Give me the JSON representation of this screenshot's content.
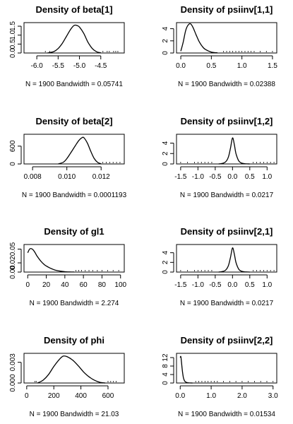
{
  "chart_data": [
    {
      "type": "line",
      "title": "Density of beta[1]",
      "subtitle": "N = 1900   Bandwidth = 0.05741",
      "xticks": [
        -6.0,
        -5.5,
        -5.0,
        -4.5
      ],
      "xtick_labels": [
        "-6.0",
        "-5.5",
        "-5.0",
        "-4.5"
      ],
      "xlim": [
        -6.3,
        -3.95
      ],
      "yticks": [
        0.0,
        0.5,
        1.0,
        1.5
      ],
      "ytick_labels": [
        "0.0",
        "0.5",
        "1.0",
        "1.5"
      ],
      "ylim": [
        0,
        1.7
      ],
      "x": [
        -5.75,
        -5.6,
        -5.5,
        -5.4,
        -5.3,
        -5.2,
        -5.12,
        -5.05,
        -5.0,
        -4.9,
        -4.8,
        -4.7,
        -4.6,
        -4.5
      ],
      "y": [
        0.0,
        0.08,
        0.25,
        0.55,
        0.95,
        1.35,
        1.55,
        1.53,
        1.45,
        1.1,
        0.6,
        0.25,
        0.07,
        0.01
      ],
      "rug": [
        -5.8,
        -5.7,
        -4.45,
        -4.35,
        -4.3,
        -4.2,
        -4.15,
        -4.1
      ]
    },
    {
      "type": "line",
      "title": "Density of psiinv[1,1]",
      "subtitle": "N = 1900   Bandwidth = 0.02388",
      "xticks": [
        0.0,
        0.5,
        1.0,
        1.5
      ],
      "xtick_labels": [
        "0.0",
        "0.5",
        "1.0",
        "1.5"
      ],
      "xlim": [
        -0.07,
        1.57
      ],
      "yticks": [
        0,
        2,
        4
      ],
      "ytick_labels": [
        "0",
        "2",
        "4"
      ],
      "ylim": [
        0,
        5.0
      ],
      "x": [
        0.0,
        0.04,
        0.08,
        0.12,
        0.16,
        0.2,
        0.25,
        0.3,
        0.35,
        0.4,
        0.5,
        0.6
      ],
      "y": [
        0.3,
        1.8,
        3.7,
        4.6,
        4.8,
        4.2,
        3.0,
        1.9,
        1.1,
        0.6,
        0.15,
        0.03
      ],
      "rug": [
        0.7,
        0.75,
        0.8,
        0.85,
        0.9,
        0.95,
        1.0,
        1.05,
        1.1,
        1.15,
        1.2,
        1.3,
        1.4,
        1.5
      ]
    },
    {
      "type": "line",
      "title": "Density of beta[2]",
      "subtitle": "N = 1900   Bandwidth = 0.0001193",
      "xticks": [
        0.008,
        0.01,
        0.012
      ],
      "xtick_labels": [
        "0.008",
        "0.010",
        "0.012"
      ],
      "xlim": [
        0.0075,
        0.01335
      ],
      "yticks": [
        0,
        600
      ],
      "ytick_labels": [
        "0",
        "600"
      ],
      "ylim": [
        0,
        1000
      ],
      "x": [
        0.0095,
        0.0098,
        0.01,
        0.0102,
        0.0105,
        0.0107,
        0.0109,
        0.011,
        0.0112,
        0.0114,
        0.0116,
        0.0118,
        0.012
      ],
      "y": [
        0,
        60,
        180,
        350,
        620,
        790,
        890,
        880,
        700,
        420,
        180,
        50,
        5
      ],
      "rug": [
        0.0121,
        0.0123,
        0.0125,
        0.0127,
        0.0129,
        0.0131
      ]
    },
    {
      "type": "line",
      "title": "Density of psiinv[1,2]",
      "subtitle": "N = 1900   Bandwidth = 0.0217",
      "xticks": [
        -1.5,
        -1.0,
        -0.5,
        0.0,
        0.5,
        1.0
      ],
      "xtick_labels": [
        "-1.5",
        "-1.0",
        "-0.5",
        "0.0",
        "0.5",
        "1.0"
      ],
      "xlim": [
        -1.62,
        1.28
      ],
      "yticks": [
        0,
        2,
        4
      ],
      "ytick_labels": [
        "0",
        "2",
        "4"
      ],
      "ylim": [
        0,
        5.7
      ],
      "x": [
        -0.4,
        -0.3,
        -0.2,
        -0.12,
        -0.06,
        0.0,
        0.05,
        0.1,
        0.18,
        0.25,
        0.35,
        0.5
      ],
      "y": [
        0.0,
        0.1,
        0.4,
        1.3,
        3.0,
        5.0,
        3.8,
        2.0,
        0.6,
        0.2,
        0.05,
        0.0
      ],
      "rug": [
        -1.5,
        -1.3,
        -1.1,
        -1.0,
        -0.9,
        -0.8,
        -0.7,
        -0.6,
        0.6,
        0.7,
        0.8,
        0.9,
        1.0,
        1.1,
        1.2
      ]
    },
    {
      "type": "line",
      "title": "Density of gl1",
      "subtitle": "N = 1900   Bandwidth = 2.274",
      "xticks": [
        0,
        20,
        40,
        60,
        80,
        100
      ],
      "xtick_labels": [
        "0",
        "20",
        "40",
        "60",
        "80",
        "100"
      ],
      "xlim": [
        -4,
        104
      ],
      "yticks": [
        0.0,
        0.02,
        0.05
      ],
      "ytick_labels": [
        "0.00",
        "0.02",
        "0.05"
      ],
      "ylim": [
        0,
        0.06
      ],
      "x": [
        0,
        2,
        4,
        6,
        8,
        10,
        14,
        18,
        22,
        26,
        30,
        35,
        40,
        45,
        50
      ],
      "y": [
        0.042,
        0.05,
        0.051,
        0.048,
        0.042,
        0.035,
        0.024,
        0.016,
        0.011,
        0.007,
        0.004,
        0.002,
        0.0008,
        0.0003,
        0.0001
      ],
      "rug": [
        52,
        55,
        58,
        62,
        66,
        70,
        75,
        80,
        86,
        92,
        98
      ]
    },
    {
      "type": "line",
      "title": "Density of psiinv[2,1]",
      "subtitle": "N = 1900   Bandwidth = 0.0217",
      "xticks": [
        -1.5,
        -1.0,
        -0.5,
        0.0,
        0.5,
        1.0
      ],
      "xtick_labels": [
        "-1.5",
        "-1.0",
        "-0.5",
        "0.0",
        "0.5",
        "1.0"
      ],
      "xlim": [
        -1.62,
        1.28
      ],
      "yticks": [
        0,
        2,
        4
      ],
      "ytick_labels": [
        "0",
        "2",
        "4"
      ],
      "ylim": [
        0,
        5.7
      ],
      "x": [
        -0.4,
        -0.3,
        -0.2,
        -0.12,
        -0.06,
        0.0,
        0.05,
        0.1,
        0.18,
        0.25,
        0.35,
        0.5
      ],
      "y": [
        0.0,
        0.1,
        0.4,
        1.3,
        3.0,
        5.0,
        3.8,
        2.0,
        0.6,
        0.2,
        0.05,
        0.0
      ],
      "rug": [
        -1.5,
        -1.3,
        -1.1,
        -1.0,
        -0.9,
        -0.8,
        -0.7,
        -0.6,
        0.6,
        0.7,
        0.8,
        0.9,
        1.0,
        1.1,
        1.2
      ]
    },
    {
      "type": "line",
      "title": "Density of phi",
      "subtitle": "N = 1900   Bandwidth = 21.03",
      "xticks": [
        0,
        200,
        400,
        600
      ],
      "xtick_labels": [
        "0",
        "200",
        "400",
        "600"
      ],
      "xlim": [
        -20,
        720
      ],
      "yticks": [
        0.0,
        0.003
      ],
      "ytick_labels": [
        "0.000",
        "0.003"
      ],
      "ylim": [
        0,
        0.0043
      ],
      "x": [
        80,
        120,
        160,
        200,
        240,
        270,
        300,
        340,
        380,
        420,
        460,
        500,
        540,
        580
      ],
      "y": [
        0.0,
        0.0004,
        0.0012,
        0.0024,
        0.0034,
        0.0039,
        0.0038,
        0.0033,
        0.0025,
        0.0016,
        0.0009,
        0.0004,
        0.0001,
        0.0
      ],
      "rug": [
        60,
        70,
        600,
        620,
        640,
        660
      ]
    },
    {
      "type": "line",
      "title": "Density of psiinv[2,2]",
      "subtitle": "N = 1900   Bandwidth = 0.01534",
      "xticks": [
        0.0,
        1.0,
        2.0,
        3.0
      ],
      "xtick_labels": [
        "0.0",
        "1.0",
        "2.0",
        "3.0"
      ],
      "xlim": [
        -0.12,
        3.12
      ],
      "yticks": [
        0,
        4,
        8,
        12
      ],
      "ytick_labels": [
        "0",
        "4",
        "8",
        "12"
      ],
      "ylim": [
        0,
        14
      ],
      "x": [
        0.0,
        0.02,
        0.04,
        0.06,
        0.08,
        0.1,
        0.12,
        0.15,
        0.2,
        0.25,
        0.3,
        0.4
      ],
      "y": [
        12.0,
        12.5,
        10.0,
        7.0,
        4.5,
        2.8,
        1.7,
        0.8,
        0.3,
        0.1,
        0.04,
        0.0
      ],
      "rug": [
        0.5,
        0.6,
        0.7,
        0.8,
        0.9,
        1.0,
        1.1,
        1.2,
        1.4,
        1.6,
        1.8,
        2.0,
        2.2,
        2.4,
        2.6,
        2.8,
        3.0
      ]
    }
  ]
}
